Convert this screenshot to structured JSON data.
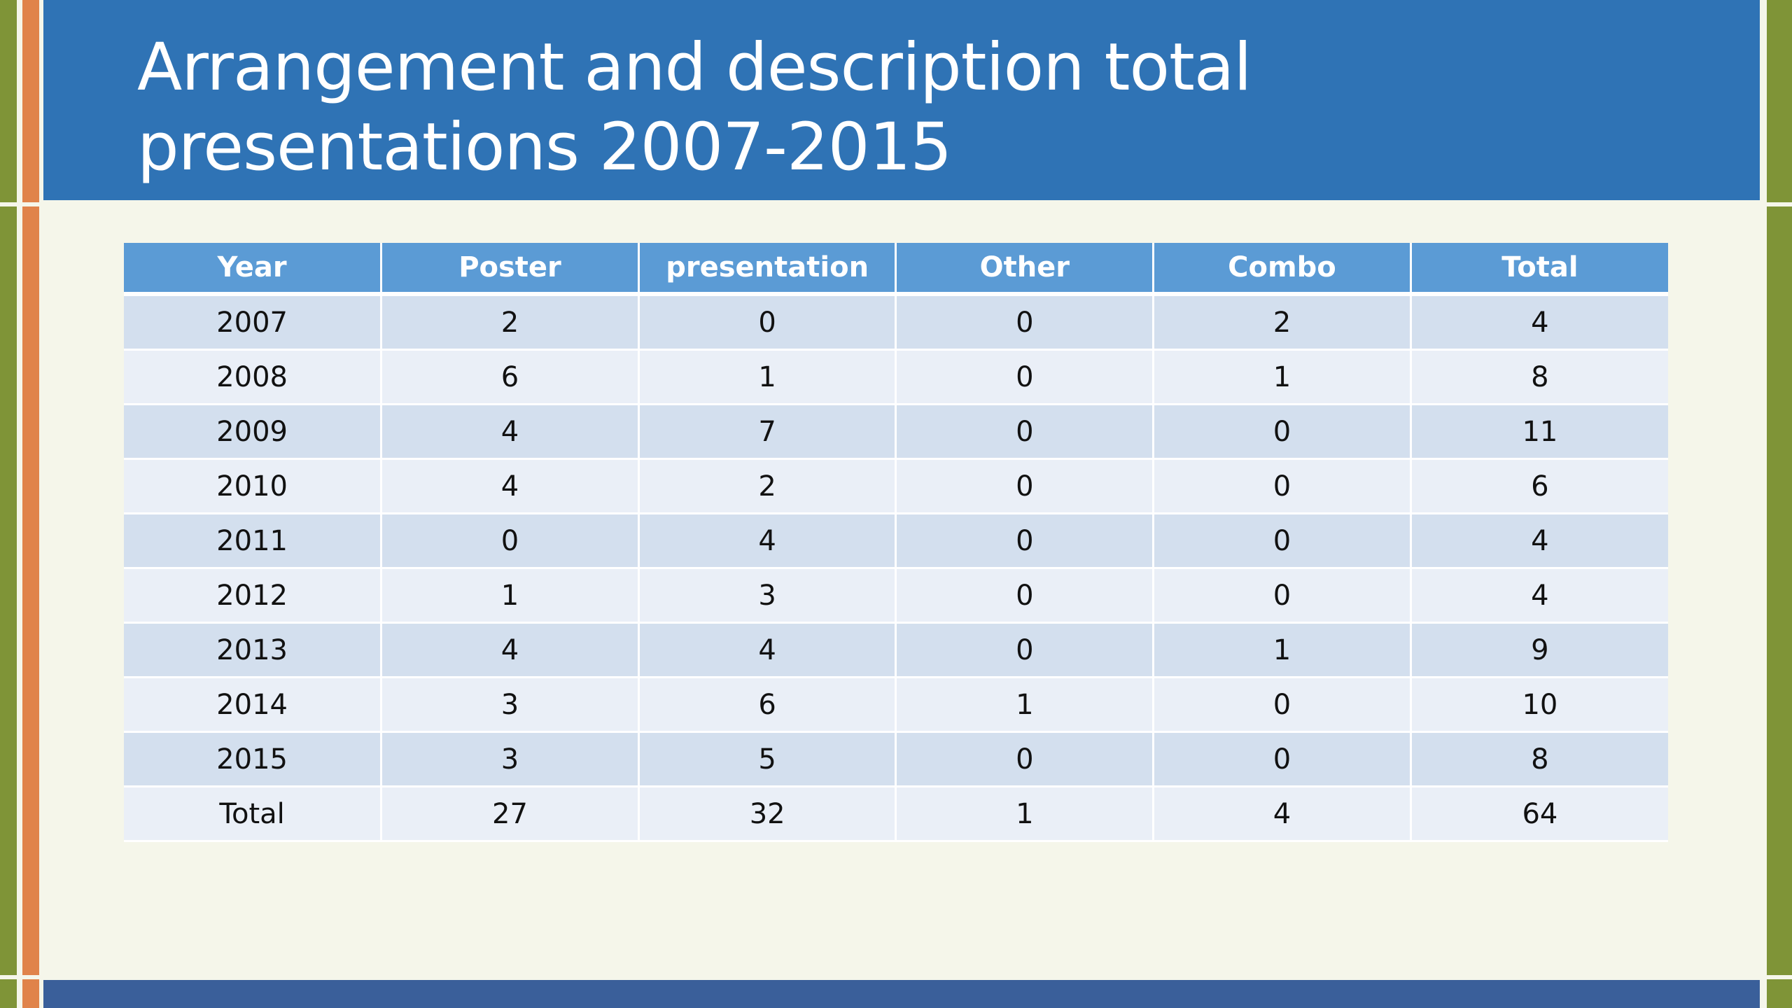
{
  "title": "Arrangement and description total presentations 2007-2015",
  "colors": {
    "header_bg": "#2f73b5",
    "table_header_bg": "#5b9bd5",
    "row_odd_bg": "#d3dfee",
    "row_even_bg": "#eaeff7",
    "accent_green": "#7f9437",
    "accent_orange": "#e0834a",
    "footer_bg": "#3a5f9a"
  },
  "table": {
    "headers": [
      "Year",
      "Poster",
      "presentation",
      "Other",
      "Combo",
      "Total"
    ],
    "rows": [
      [
        "2007",
        "2",
        "0",
        "0",
        "2",
        "4"
      ],
      [
        "2008",
        "6",
        "1",
        "0",
        "1",
        "8"
      ],
      [
        "2009",
        "4",
        "7",
        "0",
        "0",
        "11"
      ],
      [
        "2010",
        "4",
        "2",
        "0",
        "0",
        "6"
      ],
      [
        "2011",
        "0",
        "4",
        "0",
        "0",
        "4"
      ],
      [
        "2012",
        "1",
        "3",
        "0",
        "0",
        "4"
      ],
      [
        "2013",
        "4",
        "4",
        "0",
        "1",
        "9"
      ],
      [
        "2014",
        "3",
        "6",
        "1",
        "0",
        "10"
      ],
      [
        "2015",
        "3",
        "5",
        "0",
        "0",
        "8"
      ],
      [
        "Total",
        "27",
        "32",
        "1",
        "4",
        "64"
      ]
    ]
  }
}
